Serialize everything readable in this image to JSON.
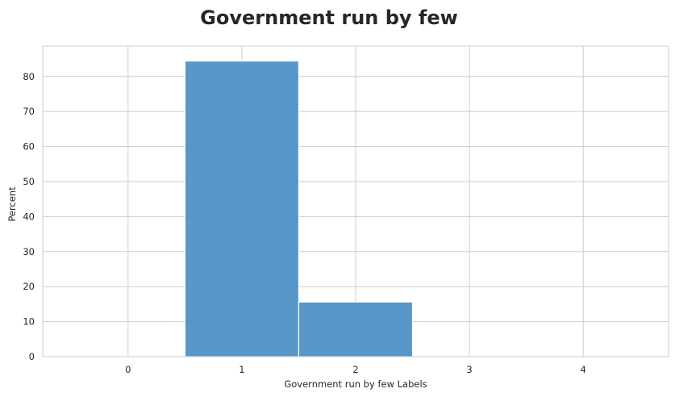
{
  "chart_data": {
    "type": "bar",
    "title": "Government run by few",
    "xlabel": "Government run by few Labels",
    "ylabel": "Percent",
    "x_ticks": [
      0,
      1,
      2,
      3,
      4
    ],
    "y_ticks": [
      0,
      10,
      20,
      30,
      40,
      50,
      60,
      70,
      80
    ],
    "xlim": [
      -0.75,
      4.75
    ],
    "ylim": [
      0,
      88.7
    ],
    "bins": [
      {
        "x0": 0.5,
        "x1": 1.5,
        "value": 84.4
      },
      {
        "x0": 1.5,
        "x1": 2.5,
        "value": 15.6
      }
    ],
    "bar_color": "#4a8ec4",
    "grid": true
  }
}
